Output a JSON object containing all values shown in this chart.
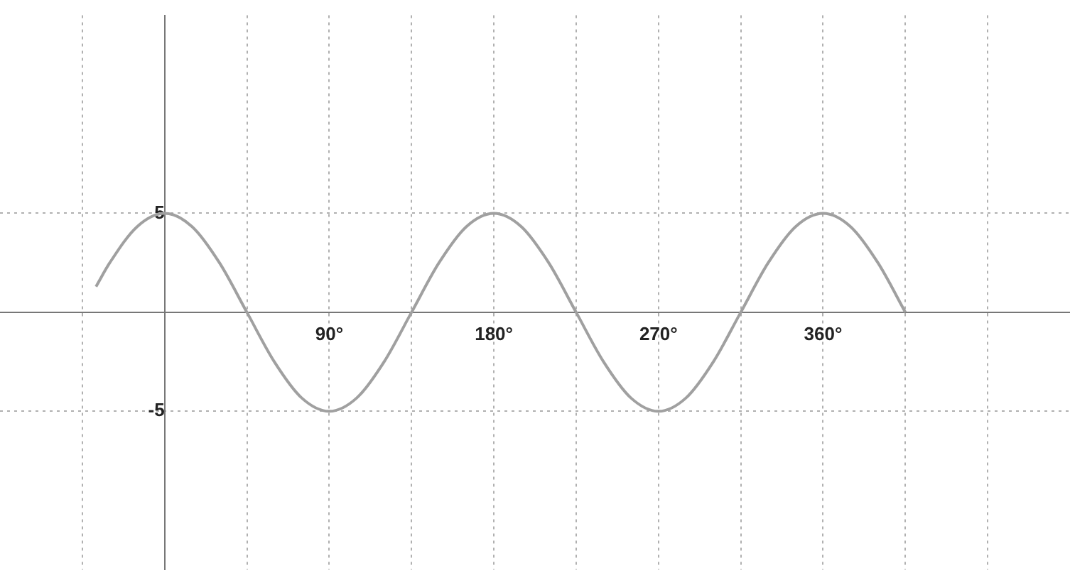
{
  "chart_data": {
    "type": "line",
    "x": [
      -37.5,
      -30,
      -15,
      0,
      15,
      30,
      45,
      60,
      75,
      90,
      105,
      120,
      135,
      150,
      165,
      180,
      195,
      210,
      225,
      240,
      255,
      270,
      285,
      300,
      315,
      330,
      345,
      360,
      375,
      390,
      405
    ],
    "series": [
      {
        "color": "#a0a0a0",
        "values": [
          1.3,
          2.5,
          4.33,
          5,
          4.33,
          2.5,
          0,
          -2.5,
          -4.33,
          -5,
          -4.33,
          -2.5,
          0,
          2.5,
          4.33,
          5,
          4.33,
          2.5,
          0,
          -2.5,
          -4.33,
          -5,
          -4.33,
          -2.5,
          0,
          2.5,
          4.33,
          5,
          4.33,
          2.5,
          0
        ]
      }
    ],
    "xlim": [
      -90,
      495
    ],
    "ylim": [
      -13,
      15
    ],
    "xticks": [
      {
        "value": -45,
        "label": null
      },
      {
        "value": 45,
        "label": null
      },
      {
        "value": 90,
        "label": "90°"
      },
      {
        "value": 135,
        "label": null
      },
      {
        "value": 180,
        "label": "180°"
      },
      {
        "value": 225,
        "label": null
      },
      {
        "value": 270,
        "label": "270°"
      },
      {
        "value": 315,
        "label": null
      },
      {
        "value": 360,
        "label": "360°"
      },
      {
        "value": 405,
        "label": null
      },
      {
        "value": 450,
        "label": null
      }
    ],
    "yticks": [
      -5,
      5
    ],
    "grid": true,
    "legend": false,
    "marker": "none",
    "line_style": "solid"
  }
}
